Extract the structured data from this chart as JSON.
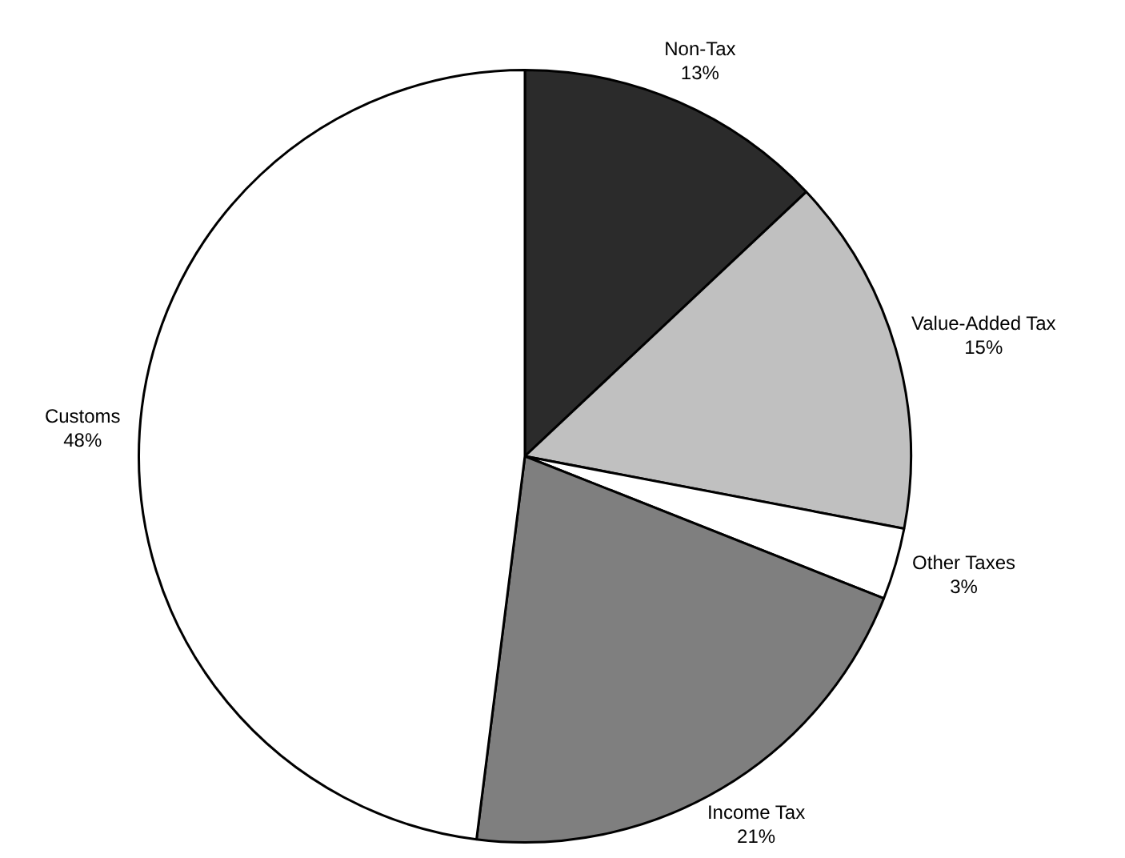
{
  "chart_data": {
    "type": "pie",
    "categories": [
      "Non-Tax",
      "Value-Added Tax",
      "Other Taxes",
      "Income Tax",
      "Customs"
    ],
    "values": [
      13,
      15,
      3,
      21,
      48
    ],
    "value_labels": [
      "13%",
      "15%",
      "3%",
      "21%",
      "48%"
    ],
    "colors": [
      "#2b2b2b",
      "#c0c0c0",
      "#ffffff",
      "#7f7f7f",
      "#ffffff"
    ],
    "legend": false
  }
}
